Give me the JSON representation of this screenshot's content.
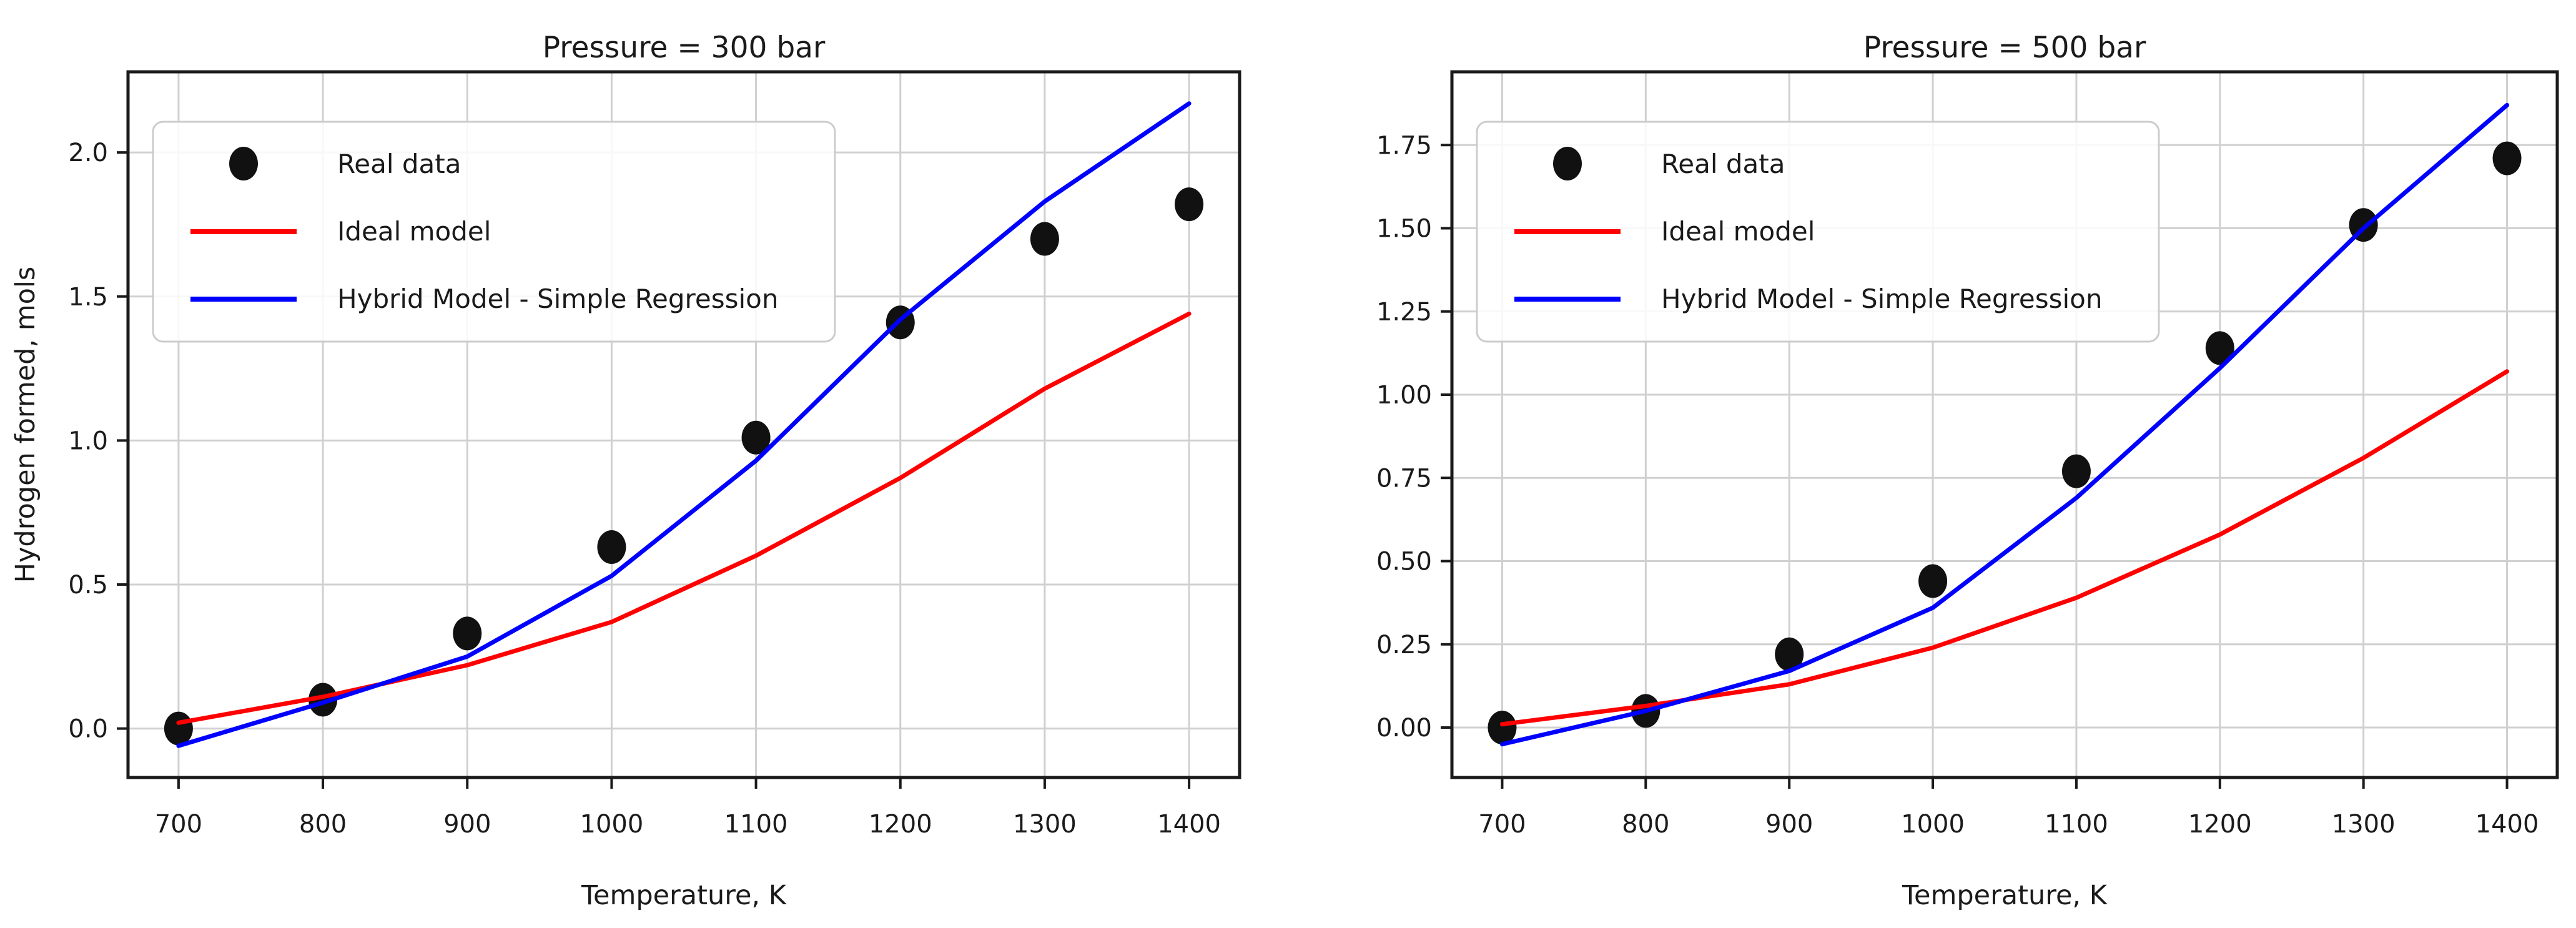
{
  "figure": {
    "background": "#ffffff",
    "grid_color": "#d0d0d0",
    "spine_color": "#1a1a1a",
    "text_color": "#1a1a1a",
    "marker_color": "#111111",
    "ideal_color": "#ff0000",
    "hybrid_color": "#0000ff",
    "legend_icons": [
      "dot-marker-icon",
      "red-line-swatch-icon",
      "blue-line-swatch-icon"
    ]
  },
  "chart_data": [
    {
      "type": "line+scatter",
      "title": "Pressure = 300 bar",
      "xlabel": "Temperature, K",
      "ylabel": "Hydrogen formed, mols",
      "x": [
        700,
        800,
        900,
        1000,
        1100,
        1200,
        1300,
        1400
      ],
      "xtick_labels": [
        "700",
        "800",
        "900",
        "1000",
        "1100",
        "1200",
        "1300",
        "1400"
      ],
      "ytick_values": [
        0.0,
        0.5,
        1.0,
        1.5,
        2.0
      ],
      "ytick_labels": [
        "0.0",
        "0.5",
        "1.0",
        "1.5",
        "2.0"
      ],
      "xlim": [
        665,
        1435
      ],
      "ylim": [
        -0.17,
        2.28
      ],
      "grid": true,
      "legend_position": "upper left",
      "series": [
        {
          "name": "Real data",
          "type": "scatter",
          "color": "#111111",
          "values": [
            0.0,
            0.1,
            0.33,
            0.63,
            1.01,
            1.41,
            1.7,
            1.82
          ]
        },
        {
          "name": "Ideal model",
          "type": "line",
          "color": "#ff0000",
          "values": [
            0.02,
            0.11,
            0.22,
            0.37,
            0.6,
            0.87,
            1.18,
            1.44
          ]
        },
        {
          "name": "Hybrid Model - Simple Regression",
          "type": "line",
          "color": "#0000ff",
          "values": [
            -0.06,
            0.09,
            0.25,
            0.53,
            0.93,
            1.42,
            1.83,
            2.17
          ]
        }
      ]
    },
    {
      "type": "line+scatter",
      "title": "Pressure = 500 bar",
      "xlabel": "Temperature, K",
      "ylabel": "",
      "x": [
        700,
        800,
        900,
        1000,
        1100,
        1200,
        1300,
        1400
      ],
      "xtick_labels": [
        "700",
        "800",
        "900",
        "1000",
        "1100",
        "1200",
        "1300",
        "1400"
      ],
      "ytick_values": [
        0.0,
        0.25,
        0.5,
        0.75,
        1.0,
        1.25,
        1.5,
        1.75
      ],
      "ytick_labels": [
        "0.00",
        "0.25",
        "0.50",
        "0.75",
        "1.00",
        "1.25",
        "1.50",
        "1.75"
      ],
      "xlim": [
        665,
        1435
      ],
      "ylim": [
        -0.15,
        1.97
      ],
      "grid": true,
      "legend_position": "upper left",
      "series": [
        {
          "name": "Real data",
          "type": "scatter",
          "color": "#111111",
          "values": [
            0.0,
            0.05,
            0.22,
            0.44,
            0.77,
            1.14,
            1.51,
            1.71
          ]
        },
        {
          "name": "Ideal model",
          "type": "line",
          "color": "#ff0000",
          "values": [
            0.01,
            0.065,
            0.13,
            0.24,
            0.39,
            0.58,
            0.81,
            1.07
          ]
        },
        {
          "name": "Hybrid Model - Simple Regression",
          "type": "line",
          "color": "#0000ff",
          "values": [
            -0.05,
            0.05,
            0.17,
            0.36,
            0.69,
            1.08,
            1.5,
            1.87
          ]
        }
      ]
    }
  ]
}
